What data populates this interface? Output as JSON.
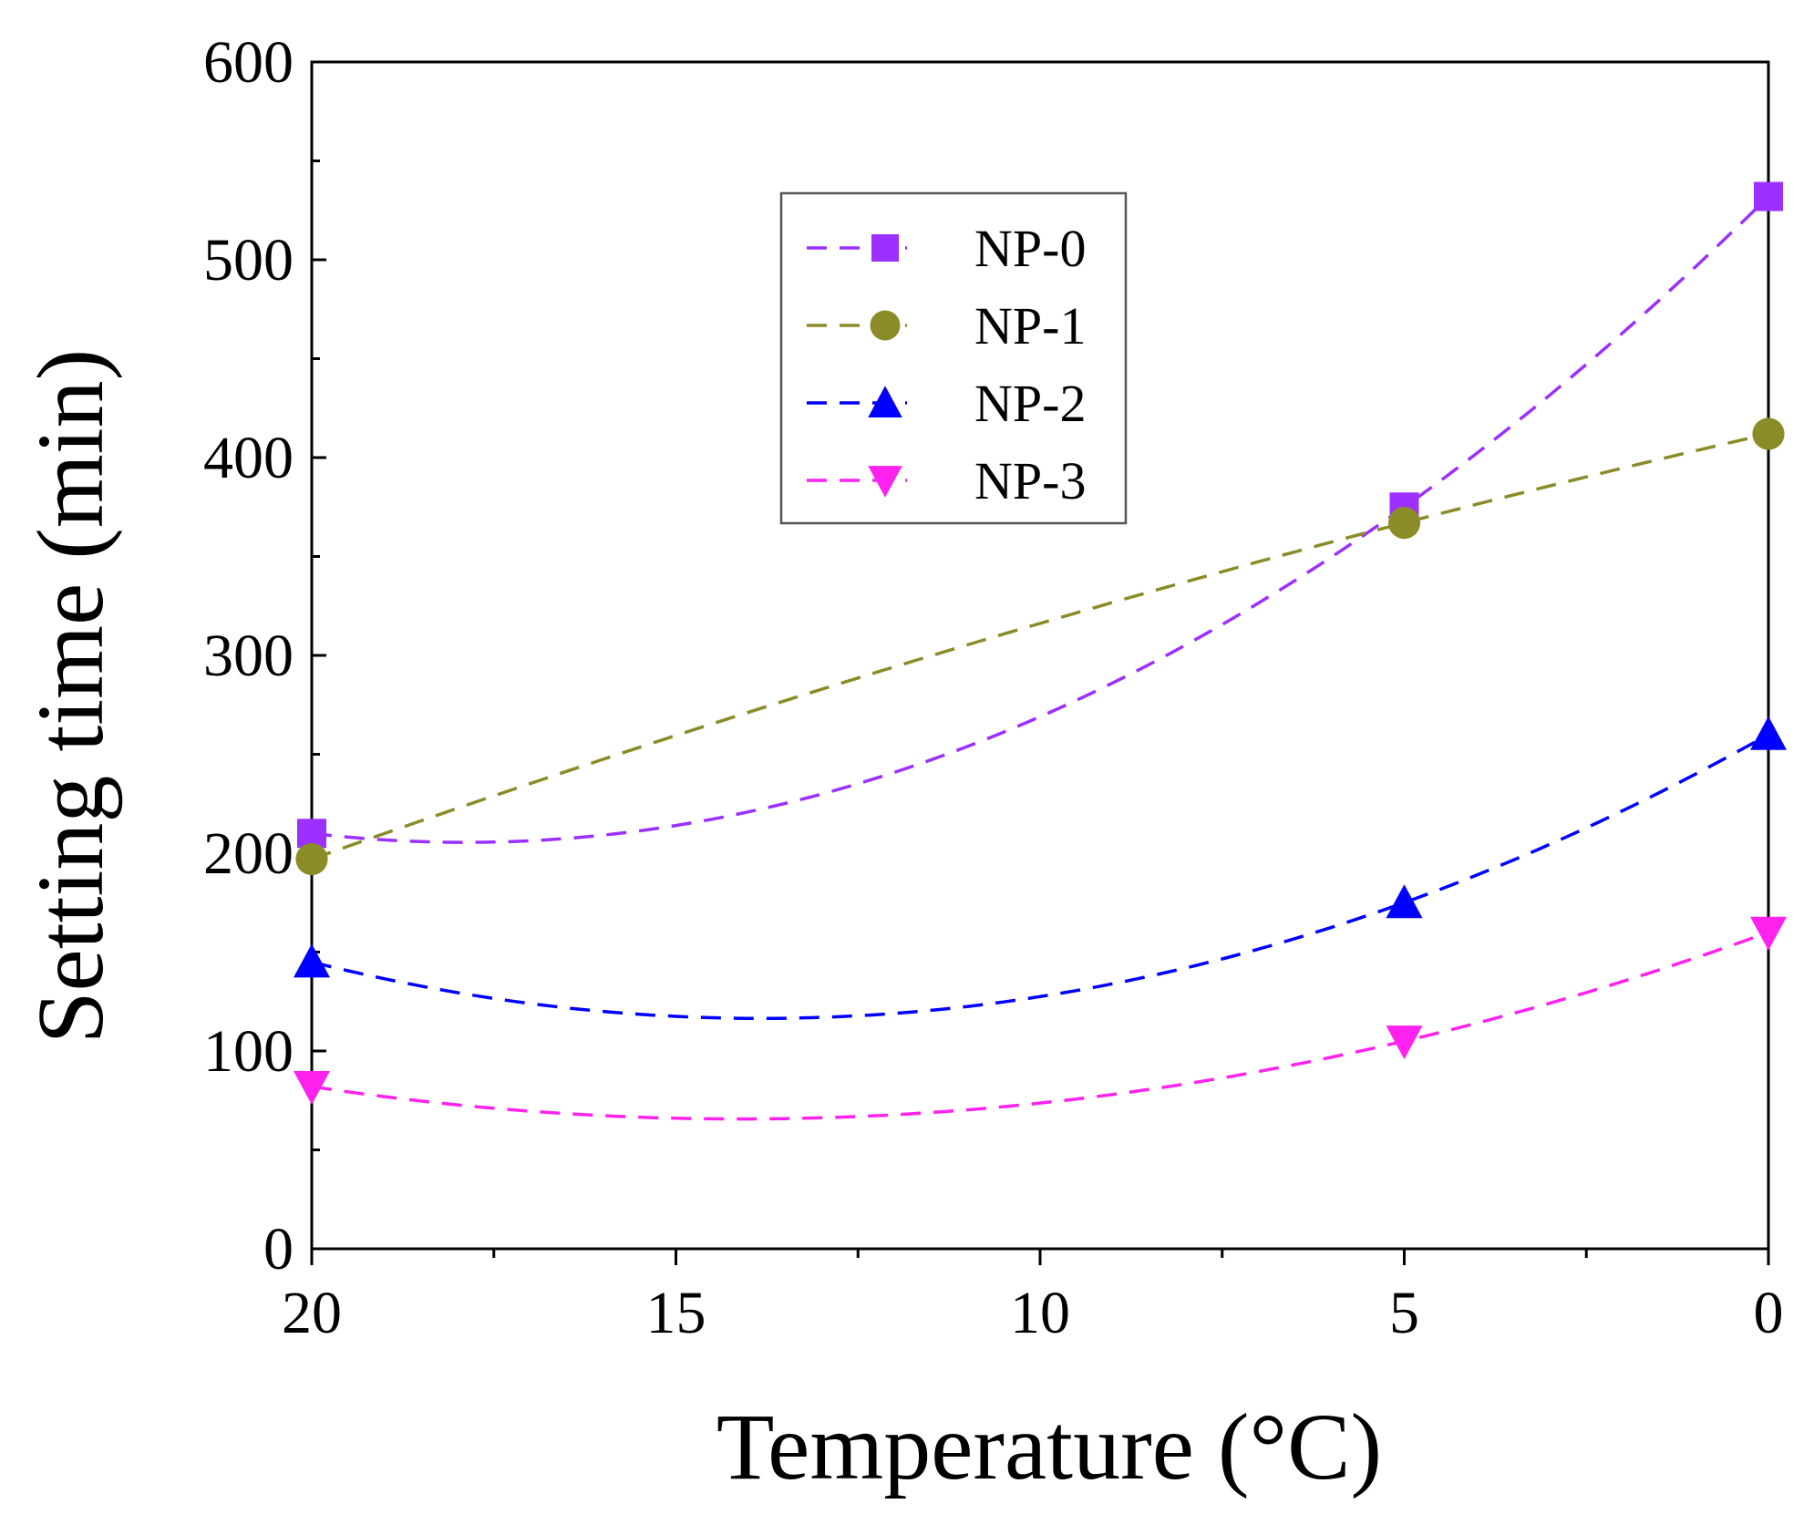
{
  "chart_data": {
    "type": "line",
    "title": "",
    "xlabel": "Temperature (°C)",
    "ylabel": "Setting time (min)",
    "xlim": [
      20,
      0
    ],
    "ylim": [
      0,
      600
    ],
    "x_ticks": [
      20,
      15,
      10,
      5,
      0
    ],
    "y_ticks": [
      0,
      100,
      200,
      300,
      400,
      500,
      600
    ],
    "x": [
      20,
      5,
      0
    ],
    "grid": false,
    "legend_position": "top-center",
    "series": [
      {
        "name": "NP-0",
        "color": "#9b30ff",
        "marker": "square",
        "values": [
          210,
          375,
          532
        ]
      },
      {
        "name": "NP-1",
        "color": "#8b8b28",
        "marker": "circle",
        "values": [
          197,
          367,
          412
        ]
      },
      {
        "name": "NP-2",
        "color": "#0000ff",
        "marker": "triangle-up",
        "values": [
          145,
          175,
          260
        ]
      },
      {
        "name": "NP-3",
        "color": "#ff22ee",
        "marker": "triangle-down",
        "values": [
          82,
          105,
          160
        ]
      }
    ]
  }
}
